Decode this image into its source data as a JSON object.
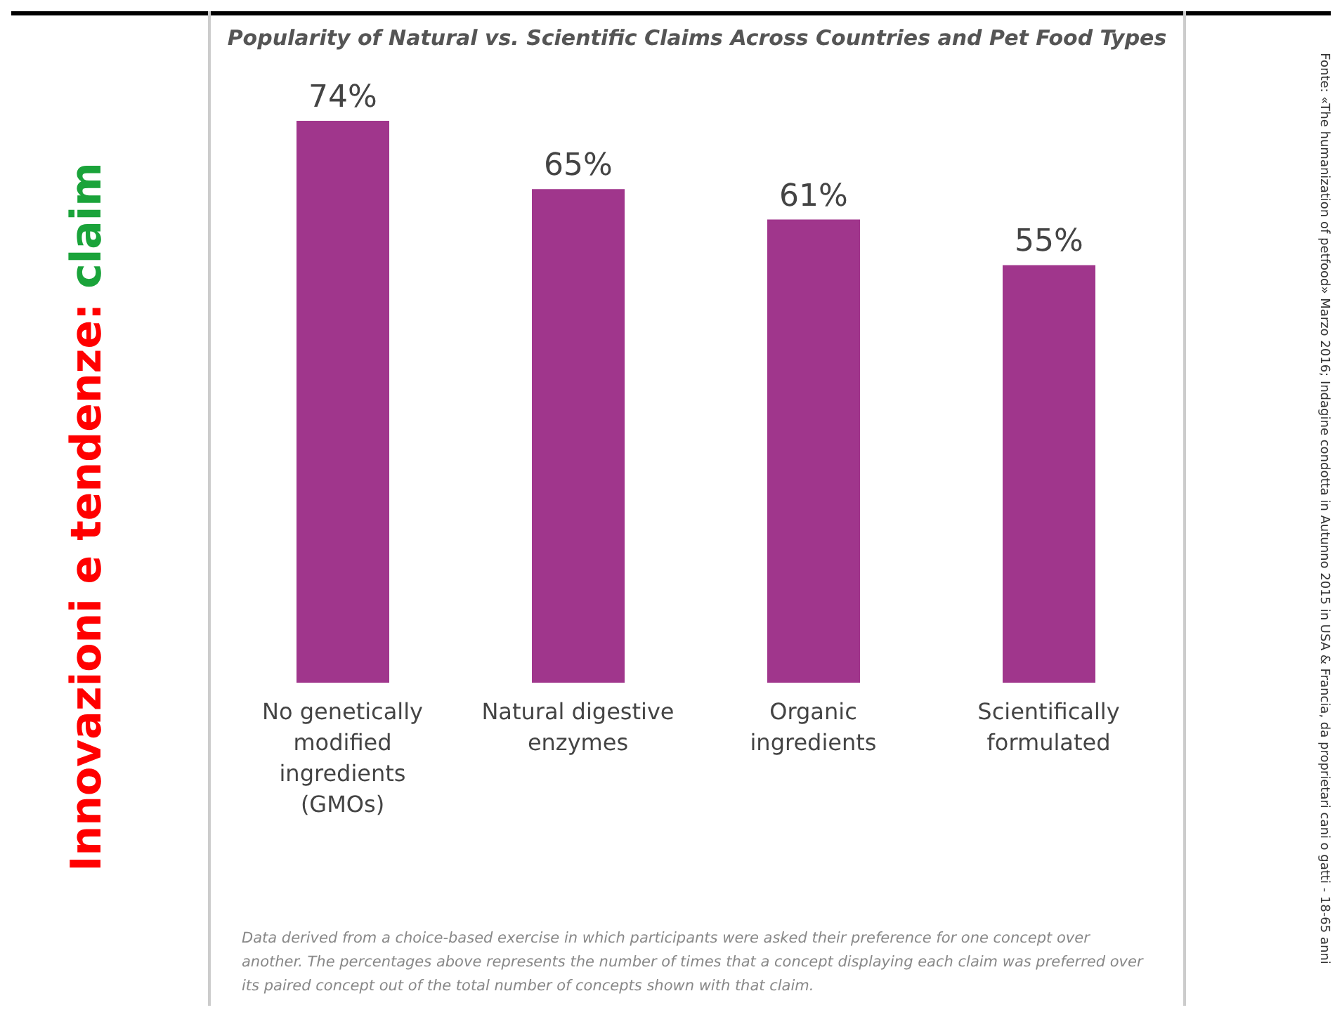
{
  "chart_data": {
    "type": "bar",
    "title": "Popularity of Natural vs. Scientific Claims Across Countries and Pet Food Types",
    "categories": [
      "No genetically modified ingredients (GMOs)",
      "Natural digestive enzymes",
      "Organic ingredients",
      "Scientifically formulated"
    ],
    "values": [
      74,
      65,
      61,
      55
    ],
    "color": "#a0368c",
    "value_labels": [
      "74%",
      "65%",
      "61%",
      "55%"
    ],
    "annotations": [
      "Innovazioni e tendenze:",
      "claim",
      "Data derived from a choice-based exercise in which participants were asked their preference for one concept over another. The percentages above represents the number of times that a concept displaying each claim was preferred over its paired concept out of the total number of concepts shown with that claim.",
      "Fonte: «The humanization of petfood» Marzo 2016; Indagine condotta in Autunno 2015 in USA & Francia, da proprietari cani o gatti - 18-65 anni"
    ],
    "grid": false,
    "legend": false
  }
}
